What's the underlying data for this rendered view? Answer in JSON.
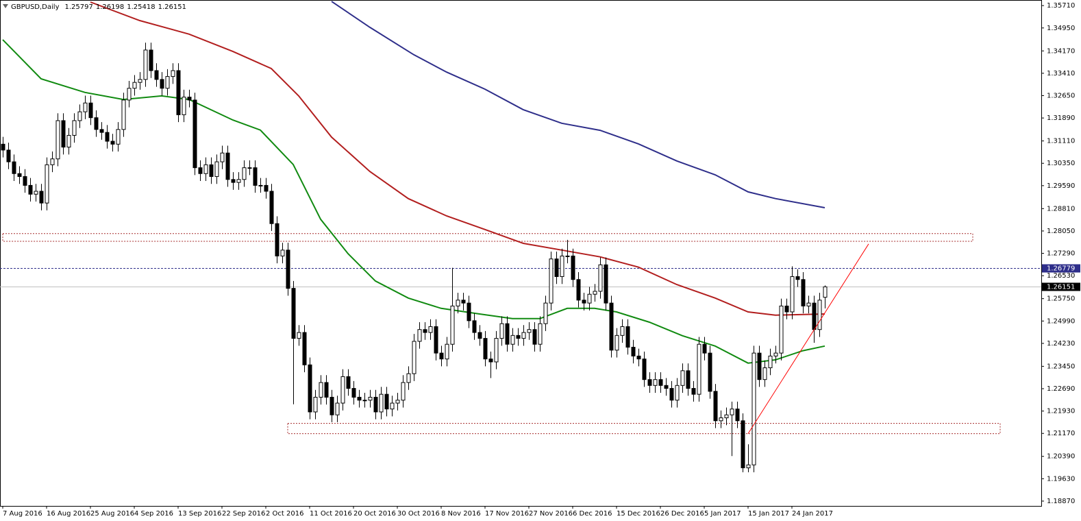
{
  "chart_data": {
    "type": "candlestick",
    "title": "GBPUSD,Daily",
    "open": [
      1.31,
      1.308,
      1.304,
      1.3,
      1.299,
      1.296,
      1.293,
      1.294,
      1.29,
      1.303,
      1.305,
      1.318,
      1.309,
      1.313,
      1.318,
      1.321,
      1.324,
      1.319,
      1.315,
      1.314,
      1.311,
      1.31,
      1.315,
      1.325,
      1.329,
      1.331,
      1.332,
      1.342,
      1.335,
      1.332,
      1.329,
      1.333,
      1.335,
      1.32,
      1.326,
      1.325,
      1.302,
      1.3,
      1.303,
      1.299,
      1.304,
      1.307,
      1.298,
      1.297,
      1.298,
      1.302,
      1.302,
      1.296,
      1.296,
      1.294,
      1.283,
      1.272,
      1.274,
      1.261,
      1.244,
      1.246,
      1.235,
      1.219,
      1.224,
      1.229,
      1.224,
      1.218,
      1.222,
      1.231,
      1.227,
      1.224,
      1.223,
      1.223,
      1.224,
      1.219,
      1.225,
      1.22,
      1.222,
      1.223,
      1.229,
      1.232,
      1.243,
      1.247,
      1.246,
      1.248,
      1.239,
      1.237,
      1.242,
      1.255,
      1.257,
      1.256,
      1.25,
      1.246,
      1.244,
      1.237,
      1.236,
      1.244,
      1.249,
      1.242,
      1.245,
      1.244,
      1.246,
      1.247,
      1.242,
      1.249,
      1.256,
      1.271,
      1.265,
      1.272,
      1.272,
      1.264,
      1.257,
      1.256,
      1.259,
      1.26,
      1.269,
      1.256,
      1.24,
      1.245,
      1.248,
      1.241,
      1.238,
      1.237,
      1.23,
      1.228,
      1.23,
      1.228,
      1.227,
      1.223,
      1.228,
      1.233,
      1.227,
      1.225,
      1.242,
      1.239,
      1.226,
      1.216,
      1.217,
      1.218,
      1.22,
      1.216,
      1.2,
      1.201,
      1.239,
      1.23,
      1.234,
      1.238,
      1.239,
      1.255,
      1.253,
      1.265,
      1.264,
      1.255,
      1.256,
      1.247,
      1.25797
    ],
    "high": [
      1.3125,
      1.3105,
      1.3065,
      1.3025,
      1.3015,
      1.2985,
      1.2965,
      1.2965,
      1.3055,
      1.3075,
      1.3205,
      1.3205,
      1.3155,
      1.3205,
      1.3235,
      1.3265,
      1.3265,
      1.3215,
      1.3175,
      1.3165,
      1.3135,
      1.3175,
      1.3275,
      1.3315,
      1.3335,
      1.3345,
      1.3445,
      1.3445,
      1.3375,
      1.3345,
      1.3355,
      1.3375,
      1.3375,
      1.3285,
      1.3285,
      1.3275,
      1.3045,
      1.3055,
      1.3055,
      1.3065,
      1.3095,
      1.3095,
      1.3005,
      1.3005,
      1.3045,
      1.3045,
      1.3045,
      1.2985,
      1.2985,
      1.2965,
      1.2855,
      1.2765,
      1.2765,
      1.2635,
      1.2485,
      1.2485,
      1.2375,
      1.2265,
      1.2315,
      1.2315,
      1.2265,
      1.2245,
      1.2335,
      1.2335,
      1.2295,
      1.2265,
      1.2255,
      1.2265,
      1.2265,
      1.2275,
      1.2275,
      1.2245,
      1.2255,
      1.2315,
      1.2345,
      1.2455,
      1.2495,
      1.2495,
      1.2505,
      1.2505,
      1.2415,
      1.2445,
      1.268,
      1.2595,
      1.2595,
      1.2585,
      1.2525,
      1.2485,
      1.2465,
      1.2395,
      1.2465,
      1.2515,
      1.2515,
      1.2475,
      1.2475,
      1.2485,
      1.2495,
      1.2495,
      1.2515,
      1.2585,
      1.2735,
      1.2735,
      1.2745,
      1.2775,
      1.2745,
      1.2665,
      1.2595,
      1.2615,
      1.2625,
      1.2715,
      1.2715,
      1.2585,
      1.2475,
      1.2505,
      1.2505,
      1.2435,
      1.2405,
      1.2395,
      1.2325,
      1.2325,
      1.2325,
      1.2305,
      1.2295,
      1.2305,
      1.2355,
      1.2355,
      1.2295,
      1.2445,
      1.2445,
      1.2415,
      1.2285,
      1.2195,
      1.2205,
      1.2225,
      1.2225,
      1.2185,
      1.208,
      1.2415,
      1.2415,
      1.2365,
      1.2405,
      1.2415,
      1.2575,
      1.2575,
      1.2685,
      1.2675,
      1.2665,
      1.2585,
      1.2585,
      1.2595,
      1.26198
    ],
    "low": [
      1.3055,
      1.3015,
      1.2975,
      1.2965,
      1.2935,
      1.2905,
      1.2905,
      1.2875,
      1.2875,
      1.3005,
      1.3025,
      1.3065,
      1.3065,
      1.3105,
      1.3155,
      1.3185,
      1.3165,
      1.3125,
      1.3115,
      1.3085,
      1.3075,
      1.3075,
      1.3125,
      1.3225,
      1.3265,
      1.3285,
      1.3295,
      1.3325,
      1.3295,
      1.3265,
      1.3265,
      1.3305,
      1.3175,
      1.3175,
      1.3225,
      1.2995,
      1.2975,
      1.2975,
      1.2965,
      1.2965,
      1.3015,
      1.2955,
      1.2945,
      1.2945,
      1.2955,
      1.2995,
      1.2935,
      1.2935,
      1.2915,
      1.2805,
      1.2695,
      1.2695,
      1.2585,
      1.2216,
      1.2415,
      1.2325,
      1.2165,
      1.2165,
      1.2215,
      1.2215,
      1.2155,
      1.2155,
      1.2195,
      1.2245,
      1.2215,
      1.2205,
      1.2205,
      1.2205,
      1.2165,
      1.2165,
      1.2175,
      1.2175,
      1.2195,
      1.2205,
      1.2265,
      1.2295,
      1.2405,
      1.2435,
      1.2435,
      1.2365,
      1.2345,
      1.2345,
      1.2395,
      1.2525,
      1.2535,
      1.2475,
      1.2435,
      1.2415,
      1.2345,
      1.2305,
      1.2335,
      1.2415,
      1.2395,
      1.2395,
      1.2415,
      1.2415,
      1.2435,
      1.2395,
      1.2395,
      1.2465,
      1.2535,
      1.2625,
      1.2625,
      1.2695,
      1.2615,
      1.2545,
      1.2535,
      1.2535,
      1.2565,
      1.2575,
      1.2535,
      1.2375,
      1.2375,
      1.2425,
      1.2385,
      1.2355,
      1.2345,
      1.2275,
      1.2255,
      1.2255,
      1.2255,
      1.2245,
      1.2205,
      1.2205,
      1.2255,
      1.2245,
      1.2225,
      1.2225,
      1.2365,
      1.2235,
      1.2135,
      1.2135,
      1.2145,
      1.204,
      1.2135,
      1.1985,
      1.1985,
      1.1985,
      1.2275,
      1.2275,
      1.2315,
      1.2355,
      1.2365,
      1.2505,
      1.2505,
      1.2615,
      1.2525,
      1.2525,
      1.2425,
      1.2445,
      1.25418
    ],
    "close": [
      1.308,
      1.304,
      1.3,
      1.299,
      1.296,
      1.293,
      1.294,
      1.29,
      1.303,
      1.305,
      1.318,
      1.309,
      1.313,
      1.318,
      1.321,
      1.324,
      1.319,
      1.315,
      1.314,
      1.311,
      1.31,
      1.315,
      1.325,
      1.329,
      1.331,
      1.332,
      1.342,
      1.335,
      1.332,
      1.329,
      1.333,
      1.335,
      1.32,
      1.326,
      1.325,
      1.302,
      1.3,
      1.303,
      1.299,
      1.304,
      1.307,
      1.298,
      1.297,
      1.298,
      1.302,
      1.302,
      1.296,
      1.296,
      1.294,
      1.283,
      1.272,
      1.274,
      1.261,
      1.244,
      1.246,
      1.235,
      1.219,
      1.224,
      1.229,
      1.224,
      1.218,
      1.222,
      1.231,
      1.227,
      1.224,
      1.223,
      1.223,
      1.224,
      1.219,
      1.225,
      1.22,
      1.222,
      1.223,
      1.229,
      1.232,
      1.243,
      1.247,
      1.246,
      1.248,
      1.239,
      1.237,
      1.242,
      1.255,
      1.257,
      1.256,
      1.25,
      1.246,
      1.244,
      1.237,
      1.236,
      1.244,
      1.249,
      1.242,
      1.245,
      1.244,
      1.246,
      1.247,
      1.242,
      1.249,
      1.256,
      1.271,
      1.265,
      1.272,
      1.272,
      1.264,
      1.257,
      1.256,
      1.259,
      1.26,
      1.269,
      1.256,
      1.24,
      1.245,
      1.248,
      1.241,
      1.238,
      1.237,
      1.23,
      1.228,
      1.23,
      1.228,
      1.227,
      1.223,
      1.228,
      1.233,
      1.227,
      1.225,
      1.242,
      1.239,
      1.226,
      1.216,
      1.217,
      1.218,
      1.22,
      1.216,
      1.2,
      1.201,
      1.239,
      1.23,
      1.234,
      1.238,
      1.239,
      1.255,
      1.253,
      1.265,
      1.264,
      1.255,
      1.256,
      1.247,
      1.257,
      1.26151
    ],
    "up_color": "#ffffff",
    "down_color": "#000000",
    "ylim": [
      1.1824,
      1.359
    ],
    "yticks": [
      {
        "value": 1.3571,
        "label": "1.35710"
      },
      {
        "value": 1.3495,
        "label": "1.34950"
      },
      {
        "value": 1.3417,
        "label": "1.34170"
      },
      {
        "value": 1.3341,
        "label": "1.33410"
      },
      {
        "value": 1.3265,
        "label": "1.32650"
      },
      {
        "value": 1.3189,
        "label": "1.31890"
      },
      {
        "value": 1.3111,
        "label": "1.31110"
      },
      {
        "value": 1.3035,
        "label": "1.30350"
      },
      {
        "value": 1.2959,
        "label": "1.29590"
      },
      {
        "value": 1.2881,
        "label": "1.28810"
      },
      {
        "value": 1.2805,
        "label": "1.28050"
      },
      {
        "value": 1.2729,
        "label": "1.27290"
      },
      {
        "value": 1.2653,
        "label": "1.26530"
      },
      {
        "value": 1.2575,
        "label": "1.25750"
      },
      {
        "value": 1.2499,
        "label": "1.24990"
      },
      {
        "value": 1.2423,
        "label": "1.24230"
      },
      {
        "value": 1.2345,
        "label": "1.23450"
      },
      {
        "value": 1.2269,
        "label": "1.22690"
      },
      {
        "value": 1.2193,
        "label": "1.21930"
      },
      {
        "value": 1.2117,
        "label": "1.21170"
      },
      {
        "value": 1.2039,
        "label": "1.20390"
      },
      {
        "value": 1.1963,
        "label": "1.19630"
      },
      {
        "value": 1.1887,
        "label": "1.18870"
      }
    ],
    "xticks": [
      {
        "value": 0,
        "label": "7 Aug 2016"
      },
      {
        "value": 8,
        "label": "16 Aug 2016"
      },
      {
        "value": 16,
        "label": "25 Aug 2016"
      },
      {
        "value": 24,
        "label": "4 Sep 2016"
      },
      {
        "value": 32,
        "label": "13 Sep 2016"
      },
      {
        "value": 40,
        "label": "22 Sep 2016"
      },
      {
        "value": 48,
        "label": "2 Oct 2016"
      },
      {
        "value": 56,
        "label": "11 Oct 2016"
      },
      {
        "value": 64,
        "label": "20 Oct 2016"
      },
      {
        "value": 72,
        "label": "30 Oct 2016"
      },
      {
        "value": 80,
        "label": "8 Nov 2016"
      },
      {
        "value": 88,
        "label": "17 Nov 2016"
      },
      {
        "value": 96,
        "label": "27 Nov 2016"
      },
      {
        "value": 104,
        "label": "6 Dec 2016"
      },
      {
        "value": 112,
        "label": "15 Dec 2016"
      },
      {
        "value": 120,
        "label": "26 Dec 2016"
      },
      {
        "value": 128,
        "label": "5 Jan 2017"
      },
      {
        "value": 136,
        "label": "15 Jan 2017"
      },
      {
        "value": 144,
        "label": "24 Jan 2017"
      }
    ],
    "grid": false,
    "lines": [
      {
        "color": "#108a10",
        "x": [
          0,
          7,
          15,
          22,
          29,
          34,
          42,
          47,
          53,
          58,
          63,
          68,
          74,
          80,
          87,
          93,
          98,
          103,
          108,
          112,
          118,
          124,
          130,
          136,
          141,
          146,
          150
        ],
        "values": [
          1.3455,
          1.3322,
          1.3276,
          1.3252,
          1.3264,
          1.3252,
          1.3182,
          1.3148,
          1.3031,
          1.2845,
          1.2728,
          1.2635,
          1.2577,
          1.2542,
          1.2523,
          1.2507,
          1.2507,
          1.2542,
          1.2542,
          1.253,
          1.2495,
          1.2449,
          1.2414,
          1.2356,
          1.2367,
          1.2398,
          1.2414
        ]
      },
      {
        "color": "#b21e1e",
        "x": [
          16,
          25,
          34,
          42,
          49,
          54,
          60,
          67,
          74,
          81,
          88,
          95,
          102,
          109,
          116,
          123,
          130,
          136,
          141,
          150
        ],
        "values": [
          1.3583,
          1.352,
          1.3474,
          1.3415,
          1.3357,
          1.3264,
          1.3124,
          1.3007,
          1.2915,
          1.2856,
          1.281,
          1.2763,
          1.274,
          1.2717,
          1.2682,
          1.2623,
          1.2577,
          1.253,
          1.2519,
          1.2523
        ]
      },
      {
        "color": "#2e2e8a",
        "x": [
          60,
          67,
          75,
          81,
          88,
          95,
          102,
          109,
          116,
          123,
          130,
          136,
          141,
          150
        ],
        "values": [
          1.3585,
          1.3497,
          1.3404,
          1.3345,
          1.3287,
          1.3217,
          1.3171,
          1.3147,
          1.3101,
          1.3043,
          1.2996,
          1.2938,
          1.2915,
          1.2884
        ]
      }
    ],
    "hlines": [
      {
        "value": 1.26779,
        "color": "#2e2e8a"
      }
    ],
    "price_line_color": "#c0c0c0",
    "zones": [
      {
        "x": [
          0,
          177
        ],
        "y": [
          1.277,
          1.2796
        ],
        "color": "#a52a2a"
      },
      {
        "x": [
          52,
          182
        ],
        "y": [
          1.2116,
          1.2151
        ],
        "color": "#a52a2a"
      }
    ],
    "trendline": {
      "x": [
        136,
        158
      ],
      "y": [
        1.2116,
        1.2761
      ],
      "color": "#ff0000"
    }
  }
}
